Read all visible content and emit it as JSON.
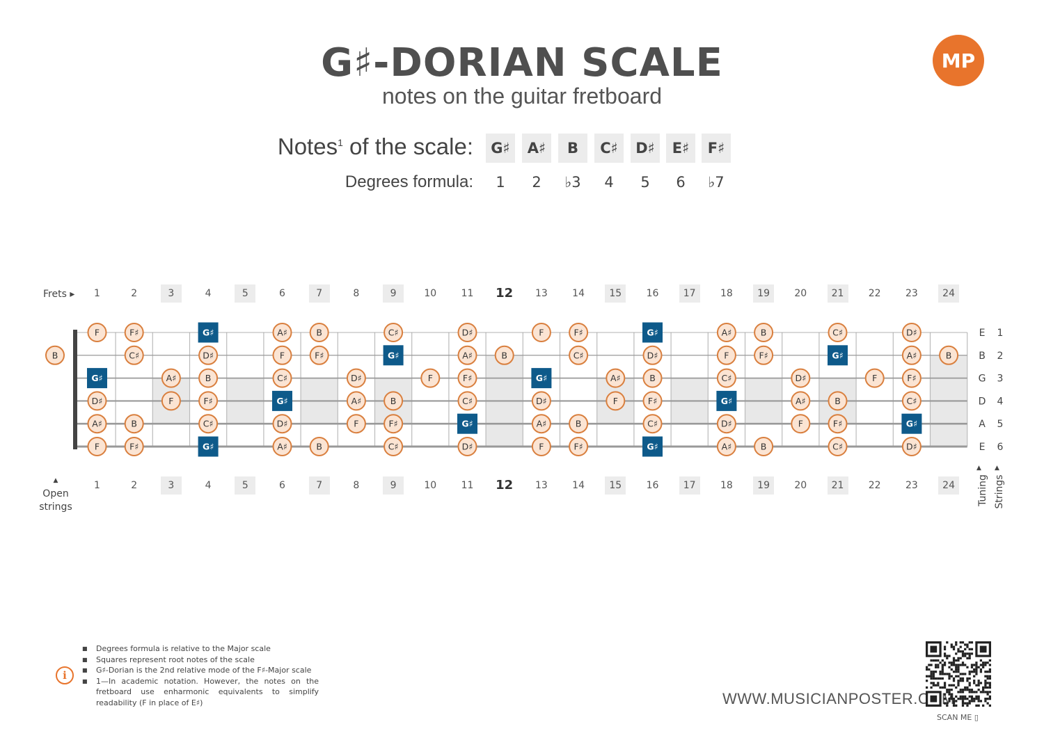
{
  "header": {
    "title": "G♯-DORIAN SCALE",
    "subtitle": "notes on the guitar fretboard",
    "logo_text": "MP",
    "brand_color": "#e8742c"
  },
  "scale": {
    "notes_label": "Notes",
    "notes_label_sup": "1",
    "notes_label_suffix": " of the scale:",
    "notes": [
      "G♯",
      "A♯",
      "B",
      "C♯",
      "D♯",
      "E♯",
      "F♯"
    ],
    "degrees_label": "Degrees formula:",
    "degrees": [
      "1",
      "2",
      "♭3",
      "4",
      "5",
      "6",
      "♭7"
    ]
  },
  "fretboard": {
    "frets_label": "Frets",
    "fret_numbers": [
      "1",
      "2",
      "3",
      "4",
      "5",
      "6",
      "7",
      "8",
      "9",
      "10",
      "11",
      "12",
      "13",
      "14",
      "15",
      "16",
      "17",
      "18",
      "19",
      "20",
      "21",
      "22",
      "23",
      "24"
    ],
    "open_strings_label": [
      "Open",
      "strings"
    ],
    "tuning": [
      "E",
      "B",
      "G",
      "D",
      "A",
      "E"
    ],
    "string_numbers": [
      "1",
      "2",
      "3",
      "4",
      "5",
      "6"
    ],
    "tuning_label": "Tuning",
    "strings_label": "Strings",
    "open_notes": {
      "1": "B"
    },
    "root": "G♯",
    "note_color": "#fbe4d3",
    "note_border": "#d97f3e",
    "root_color": "#0e5a8a",
    "strings": [
      {
        "string": "E",
        "notes": {
          "1": "F",
          "2": "F♯",
          "4": "G♯",
          "6": "A♯",
          "7": "B",
          "9": "C♯",
          "11": "D♯",
          "13": "F",
          "14": "F♯",
          "16": "G♯",
          "18": "A♯",
          "19": "B",
          "21": "C♯",
          "23": "D♯"
        }
      },
      {
        "string": "B",
        "notes": {
          "2": "C♯",
          "4": "D♯",
          "6": "F",
          "7": "F♯",
          "9": "G♯",
          "11": "A♯",
          "12": "B",
          "14": "C♯",
          "16": "D♯",
          "18": "F",
          "19": "F♯",
          "21": "G♯",
          "23": "A♯",
          "24": "B"
        }
      },
      {
        "string": "G",
        "notes": {
          "1": "G♯",
          "3": "A♯",
          "4": "B",
          "6": "C♯",
          "8": "D♯",
          "10": "F",
          "11": "F♯",
          "13": "G♯",
          "15": "A♯",
          "16": "B",
          "18": "C♯",
          "20": "D♯",
          "22": "F",
          "23": "F♯"
        }
      },
      {
        "string": "D",
        "notes": {
          "1": "D♯",
          "3": "F",
          "4": "F♯",
          "6": "G♯",
          "8": "A♯",
          "9": "B",
          "11": "C♯",
          "13": "D♯",
          "15": "F",
          "16": "F♯",
          "18": "G♯",
          "20": "A♯",
          "21": "B",
          "23": "C♯"
        }
      },
      {
        "string": "A",
        "notes": {
          "1": "A♯",
          "2": "B",
          "4": "C♯",
          "6": "D♯",
          "8": "F",
          "9": "F♯",
          "11": "G♯",
          "13": "A♯",
          "14": "B",
          "16": "C♯",
          "18": "D♯",
          "20": "F",
          "21": "F♯",
          "23": "G♯"
        }
      },
      {
        "string": "E",
        "notes": {
          "1": "F",
          "2": "F♯",
          "4": "G♯",
          "6": "A♯",
          "7": "B",
          "9": "C♯",
          "11": "D♯",
          "13": "F",
          "14": "F♯",
          "16": "G♯",
          "18": "A♯",
          "19": "B",
          "21": "C♯",
          "23": "D♯"
        }
      }
    ]
  },
  "footer": {
    "notes": [
      "Degrees formula is relative to the Major scale",
      "Squares represent root notes of the scale",
      "G♯-Dorian is the 2nd relative mode of the F♯-Major scale",
      "1—In academic notation. However, the notes on the fretboard use enharmonic equivalents to simplify readability (F in place of E♯)"
    ],
    "info_icon": "i",
    "website": "WWW.MUSICIANPOSTER.COM",
    "scan_label": "SCAN ME"
  }
}
